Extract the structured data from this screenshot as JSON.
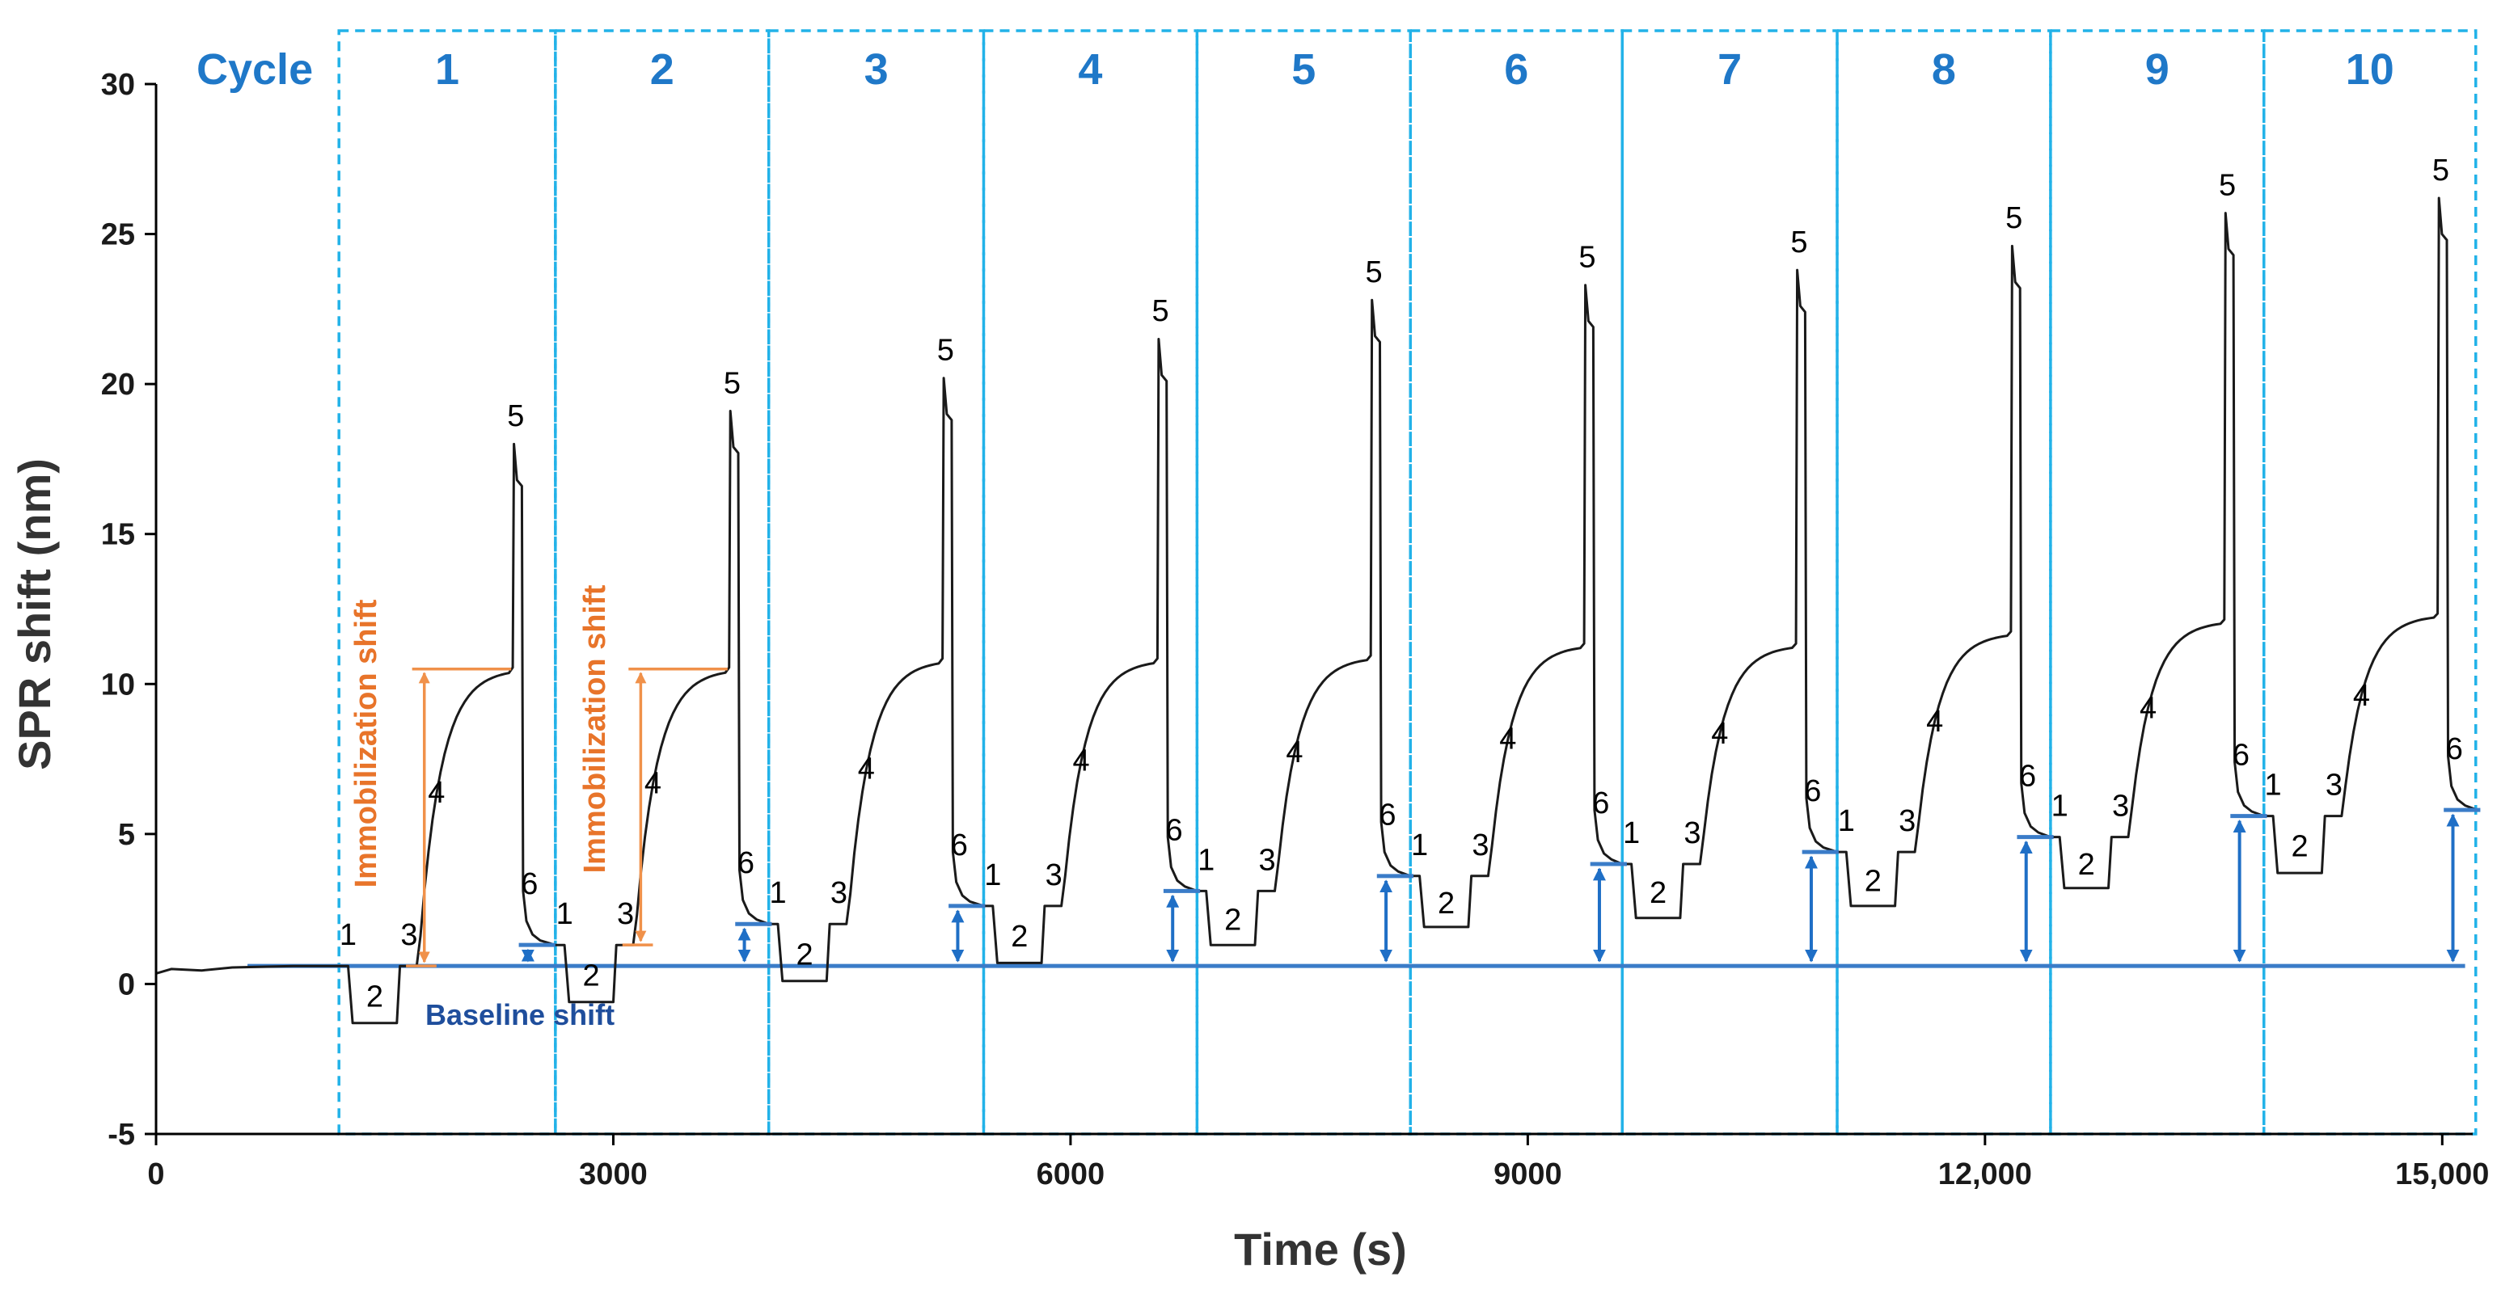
{
  "chart_data": {
    "type": "line",
    "xlabel": "Time (s)",
    "ylabel": "SPR shift (nm)",
    "xlim": [
      0,
      15200
    ],
    "ylim": [
      -5,
      30
    ],
    "x_ticks": [
      0,
      3000,
      6000,
      9000,
      12000,
      15000
    ],
    "x_tick_labels": [
      "0",
      "3000",
      "6000",
      "9000",
      "12,000",
      "15,000"
    ],
    "y_ticks": [
      -5,
      0,
      5,
      10,
      15,
      20,
      25,
      30
    ],
    "y_tick_labels": [
      "-5",
      "0",
      "5",
      "10",
      "15",
      "20",
      "25",
      "30"
    ],
    "cycle_header": "Cycle",
    "cycle_boundaries": [
      1200,
      2620,
      4020,
      5430,
      6830,
      8230,
      9620,
      11030,
      12430,
      13830,
      15220
    ],
    "cycles": [
      {
        "label": "1",
        "start": 1200,
        "base": 0.6,
        "dip": -1.3,
        "mid": 0.6,
        "plateau": 10.5,
        "peak": 18.0,
        "end": 1.3
      },
      {
        "label": "2",
        "start": 2620,
        "base": 1.3,
        "dip": -0.6,
        "mid": 1.3,
        "plateau": 10.5,
        "peak": 19.1,
        "end": 2.0
      },
      {
        "label": "3",
        "start": 4020,
        "base": 2.0,
        "dip": 0.1,
        "mid": 2.0,
        "plateau": 10.8,
        "peak": 20.2,
        "end": 2.6
      },
      {
        "label": "4",
        "start": 5430,
        "base": 2.6,
        "dip": 0.7,
        "mid": 2.6,
        "plateau": 10.8,
        "peak": 21.5,
        "end": 3.1
      },
      {
        "label": "5",
        "start": 6830,
        "base": 3.1,
        "dip": 1.3,
        "mid": 3.1,
        "plateau": 10.9,
        "peak": 22.8,
        "end": 3.6
      },
      {
        "label": "6",
        "start": 8230,
        "base": 3.6,
        "dip": 1.9,
        "mid": 3.6,
        "plateau": 11.3,
        "peak": 23.3,
        "end": 4.0
      },
      {
        "label": "7",
        "start": 9620,
        "base": 4.0,
        "dip": 2.2,
        "mid": 4.0,
        "plateau": 11.3,
        "peak": 23.8,
        "end": 4.4
      },
      {
        "label": "8",
        "start": 11030,
        "base": 4.4,
        "dip": 2.6,
        "mid": 4.4,
        "plateau": 11.7,
        "peak": 24.6,
        "end": 4.9
      },
      {
        "label": "9",
        "start": 12430,
        "base": 4.9,
        "dip": 3.2,
        "mid": 4.9,
        "plateau": 12.1,
        "peak": 25.7,
        "end": 5.6
      },
      {
        "label": "10",
        "start": 13830,
        "base": 5.6,
        "dip": 3.7,
        "mid": 5.6,
        "plateau": 12.3,
        "peak": 26.2,
        "end": 5.8
      }
    ],
    "baseline_value": 0.6,
    "baseline_shifts": [
      1.3,
      2.0,
      2.6,
      3.1,
      3.6,
      4.0,
      4.4,
      4.9,
      5.6,
      5.8
    ],
    "step_labels": [
      "1",
      "2",
      "3",
      "4",
      "5",
      "6"
    ],
    "annotations": {
      "immobilization_label": "Immobilization shift",
      "baseline_label": "Baseline shift"
    },
    "colors": {
      "trace": "#1a1a1a",
      "baseline": "#3a7cc8",
      "arrow_blue": "#1f6fc6",
      "arrow_orange": "#f0914a",
      "text_orange": "#e8742a",
      "text_blue": "#1f4e9c",
      "cycle_box": "#22b2e8",
      "cycle_text": "#1f78c8"
    }
  }
}
